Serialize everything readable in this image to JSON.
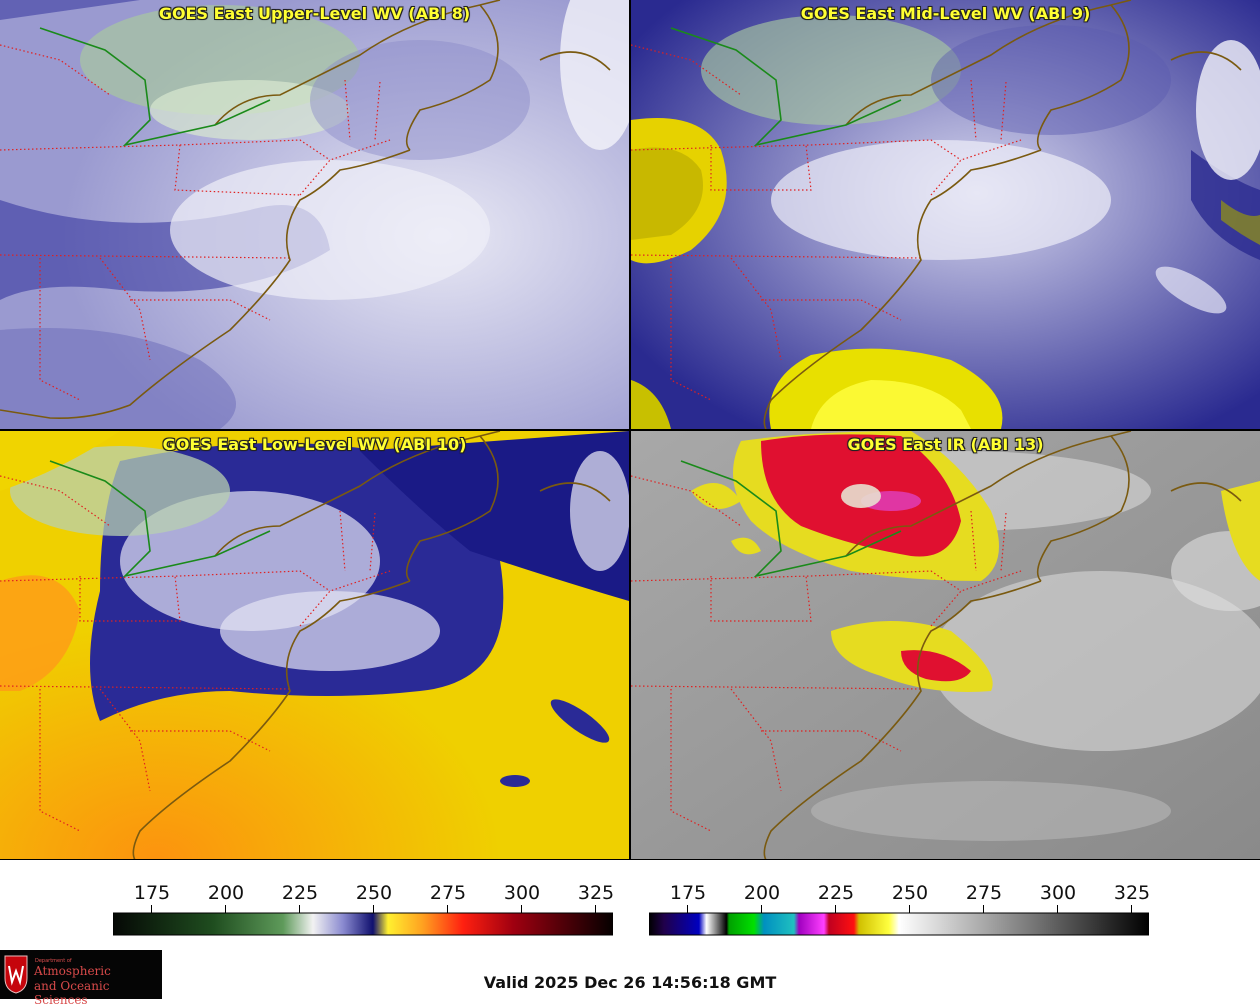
{
  "panels": [
    {
      "id": "upper",
      "title": "GOES East Upper-Level WV (ABI 8)"
    },
    {
      "id": "mid",
      "title": "GOES East Mid-Level WV (ABI 9)"
    },
    {
      "id": "low",
      "title": "GOES East Low-Level WV (ABI 10)"
    },
    {
      "id": "ir",
      "title": "GOES East IR (ABI 13)"
    }
  ],
  "colorbars": [
    {
      "id": "wv",
      "ticks": [
        "175",
        "200",
        "225",
        "250",
        "275",
        "300",
        "325"
      ]
    },
    {
      "id": "ir",
      "ticks": [
        "175",
        "200",
        "225",
        "250",
        "275",
        "300",
        "325"
      ]
    }
  ],
  "valid_time": "Valid 2025 Dec 26 14:56:18 GMT",
  "logo": {
    "dept_line": "Department of",
    "line1": "Atmospheric",
    "line2": "and Oceanic Sciences"
  },
  "colors": {
    "title_yellow": "#ffff33",
    "border_red": "#e02020",
    "coast_brown": "#7a5a10",
    "canada_green": "#1a8a1a"
  }
}
